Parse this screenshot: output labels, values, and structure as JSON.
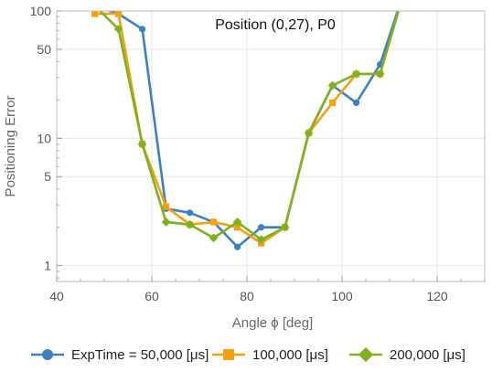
{
  "chart_data": {
    "type": "line",
    "title": "Position (0,27), P0",
    "xlabel": "Angle ϕ [deg]",
    "ylabel": "Positioning Error",
    "xlim": [
      40,
      130
    ],
    "ylim": [
      0.75,
      100
    ],
    "yscale": "log",
    "grid": true,
    "legend_position": "bottom",
    "x_ticks": [
      40,
      60,
      80,
      100,
      120
    ],
    "y_ticks": [
      1,
      5,
      10,
      50,
      100
    ],
    "series": [
      {
        "name": "ExpTime = 50,000 [μs]",
        "color": "#3d7fbf",
        "marker": "circle",
        "x": [
          48,
          53,
          58,
          63,
          68,
          73,
          78,
          83,
          88,
          93,
          98,
          103,
          108,
          113
        ],
        "y": [
          110,
          95,
          72,
          2.8,
          2.6,
          2.2,
          1.4,
          2.0,
          2.0,
          11,
          26,
          19,
          38,
          140
        ]
      },
      {
        "name": "100,000 [μs]",
        "color": "#f5a00f",
        "marker": "square",
        "x": [
          48,
          53,
          58,
          63,
          68,
          73,
          78,
          83,
          88,
          93,
          98,
          103,
          108,
          113
        ],
        "y": [
          95,
          95,
          9,
          2.9,
          2.1,
          2.2,
          2.0,
          1.5,
          2.0,
          11,
          19,
          32,
          32,
          140
        ]
      },
      {
        "name": "200,000 [μs]",
        "color": "#7fb020",
        "marker": "diamond",
        "x": [
          48,
          53,
          58,
          63,
          68,
          73,
          78,
          83,
          88,
          93,
          98,
          103,
          108,
          113
        ],
        "y": [
          110,
          72,
          9,
          2.2,
          2.1,
          1.65,
          2.2,
          1.6,
          2.0,
          11,
          26,
          32,
          32,
          140
        ]
      }
    ]
  }
}
